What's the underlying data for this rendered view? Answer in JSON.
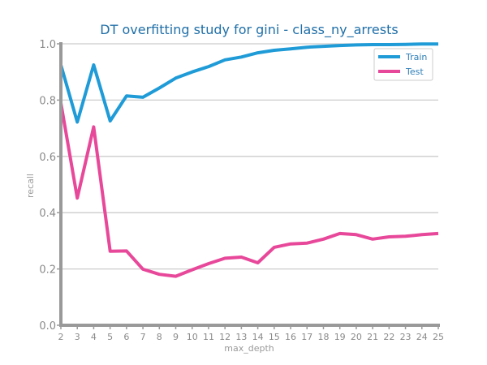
{
  "chart_data": {
    "type": "line",
    "title": "DT overfitting study for gini - class_ny_arrests",
    "xlabel": "max_depth",
    "ylabel": "recall",
    "x": [
      2,
      3,
      4,
      5,
      6,
      7,
      8,
      9,
      10,
      11,
      12,
      13,
      14,
      15,
      16,
      17,
      18,
      19,
      20,
      21,
      22,
      23,
      24,
      25
    ],
    "ylim": [
      0,
      1.0
    ],
    "yticks": [
      "0.0",
      "0.2",
      "0.4",
      "0.6",
      "0.8",
      "1.0"
    ],
    "grid": "horizontal",
    "legend_position": "top-right",
    "series": [
      {
        "name": "Train",
        "color": "#1f9bd7",
        "values": [
          0.925,
          0.722,
          0.925,
          0.726,
          0.815,
          0.81,
          0.843,
          0.878,
          0.9,
          0.919,
          0.943,
          0.953,
          0.968,
          0.977,
          0.982,
          0.988,
          0.991,
          0.994,
          0.996,
          0.997,
          0.997,
          0.998,
          0.999,
          0.999
        ]
      },
      {
        "name": "Test",
        "color": "#e8489a",
        "values": [
          0.79,
          0.452,
          0.705,
          0.263,
          0.264,
          0.199,
          0.181,
          0.174,
          0.197,
          0.219,
          0.238,
          0.242,
          0.222,
          0.277,
          0.289,
          0.292,
          0.306,
          0.326,
          0.322,
          0.306,
          0.314,
          0.316,
          0.322,
          0.326
        ]
      }
    ]
  }
}
